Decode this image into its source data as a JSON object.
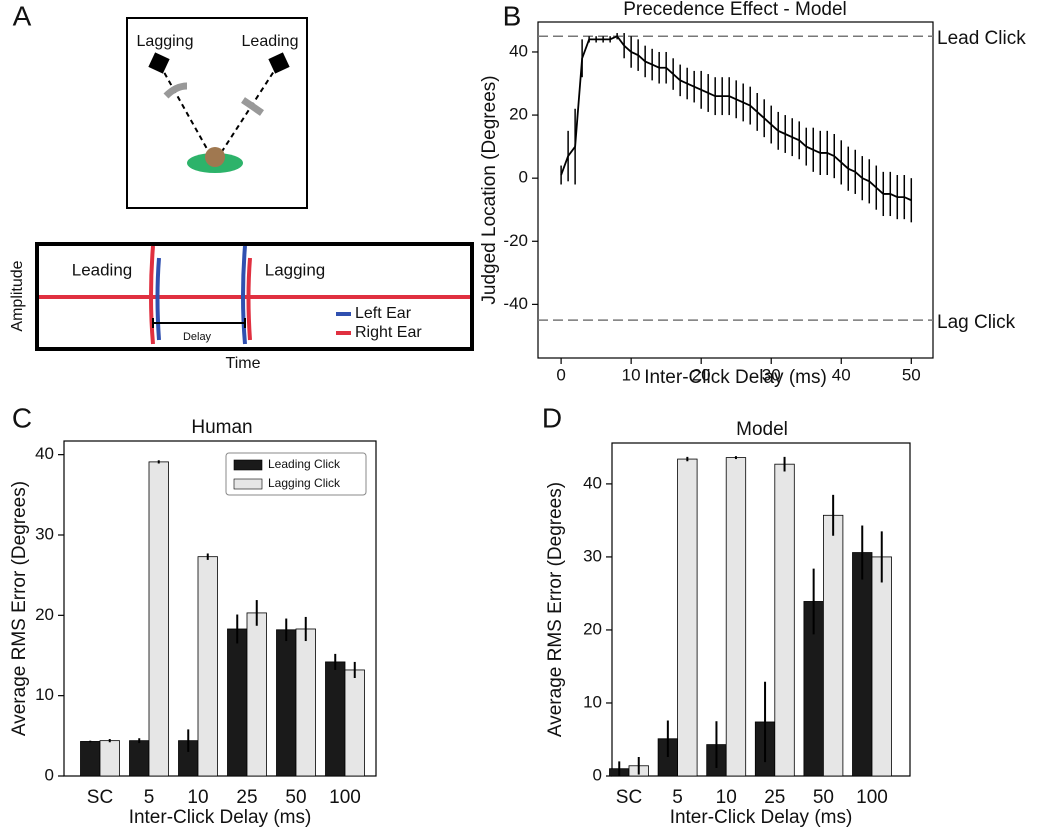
{
  "panels": [
    "A",
    "B",
    "C",
    "D"
  ],
  "diagram": {
    "top_labels": [
      "Lagging",
      "Leading"
    ],
    "clicks": [
      "Leading",
      "Lagging"
    ],
    "legend": [
      "Left Ear",
      "Right Ear"
    ],
    "delay": "Delay",
    "ylabel": "Amplitude",
    "xlabel": "Time"
  },
  "chart_data": [
    {
      "type": "line",
      "title": "Precedence Effect - Model",
      "xlabel": "Inter-Click Delay (ms)",
      "ylabel": "Judged Location (Degrees)",
      "x": [
        0,
        1,
        2,
        3,
        4,
        5,
        6,
        7,
        8,
        9,
        10,
        11,
        12,
        13,
        14,
        15,
        16,
        17,
        18,
        19,
        20,
        21,
        22,
        23,
        24,
        25,
        26,
        27,
        28,
        29,
        30,
        31,
        32,
        33,
        34,
        35,
        36,
        37,
        38,
        39,
        40,
        41,
        42,
        43,
        44,
        45,
        46,
        47,
        48,
        49,
        50
      ],
      "series": [
        {
          "color": "#000000",
          "values": [
            1,
            7,
            10,
            38,
            44,
            44,
            44,
            44,
            45,
            42,
            40,
            39,
            37,
            36,
            35,
            35,
            33,
            31,
            30,
            29,
            28,
            27,
            26,
            26,
            26,
            25,
            24,
            23,
            21,
            19,
            17,
            15,
            14,
            13,
            12,
            10,
            9,
            8,
            8,
            7,
            5,
            3,
            2,
            0,
            -1,
            -3,
            -5,
            -5,
            -6,
            -6,
            -7
          ],
          "errors": [
            3,
            8,
            12,
            6,
            1,
            1,
            1,
            1,
            1,
            4,
            5,
            5,
            5,
            5,
            5,
            5,
            5,
            5,
            5,
            5,
            6,
            6,
            6,
            6,
            6,
            6,
            6,
            6,
            6,
            6,
            6,
            6,
            6,
            6,
            6,
            6,
            7,
            7,
            7,
            7,
            7,
            7,
            7,
            7,
            7,
            7,
            7,
            7,
            7,
            7,
            7
          ]
        }
      ],
      "hlines": [
        {
          "value": 45,
          "label": "Lead Click"
        },
        {
          "value": -45,
          "label": "Lag Click"
        }
      ],
      "xlim": [
        -3.3,
        53.1
      ],
      "xticks": [
        0,
        10,
        20,
        30,
        40,
        50
      ],
      "ylim": [
        -57,
        49.5
      ],
      "yticks": [
        -40,
        -20,
        0,
        20,
        40
      ]
    },
    {
      "type": "bar",
      "title": "Human",
      "xlabel": "Inter-Click Delay (ms)",
      "ylabel": "Average RMS Error (Degrees)",
      "categories": [
        "SC",
        "5",
        "10",
        "25",
        "50",
        "100"
      ],
      "series": [
        {
          "name": "Leading Click",
          "color": "#1a1a1a",
          "values": [
            4.3,
            4.4,
            4.4,
            18.3,
            18.2,
            14.2
          ],
          "errors": [
            0.1,
            0.3,
            1.4,
            1.8,
            1.4,
            1.0
          ]
        },
        {
          "name": "Lagging Click",
          "color": "#e6e6e6",
          "values": [
            4.4,
            39.1,
            27.3,
            20.3,
            18.3,
            13.2
          ],
          "errors": [
            0.2,
            0.2,
            0.4,
            1.6,
            1.5,
            1.0
          ]
        }
      ],
      "ylim": [
        0,
        41.7
      ],
      "yticks": [
        0,
        10,
        20,
        30,
        40
      ],
      "legend": "upper right"
    },
    {
      "type": "bar",
      "title": "Model",
      "xlabel": "Inter-Click Delay (ms)",
      "ylabel": "Average RMS Error (Degrees)",
      "categories": [
        "SC",
        "5",
        "10",
        "25",
        "50",
        "100"
      ],
      "series": [
        {
          "name": "Leading Click",
          "color": "#1a1a1a",
          "values": [
            1.0,
            5.1,
            4.3,
            7.4,
            23.9,
            30.6
          ],
          "errors": [
            1.0,
            2.5,
            3.2,
            5.5,
            4.5,
            3.7
          ]
        },
        {
          "name": "Lagging Click",
          "color": "#e6e6e6",
          "values": [
            1.4,
            43.4,
            43.6,
            42.7,
            35.7,
            30.0
          ],
          "errors": [
            1.2,
            0.3,
            0.2,
            1.0,
            2.8,
            3.5
          ]
        }
      ],
      "ylim": [
        0,
        45.6
      ],
      "yticks": [
        0,
        10,
        20,
        30,
        40
      ]
    }
  ]
}
